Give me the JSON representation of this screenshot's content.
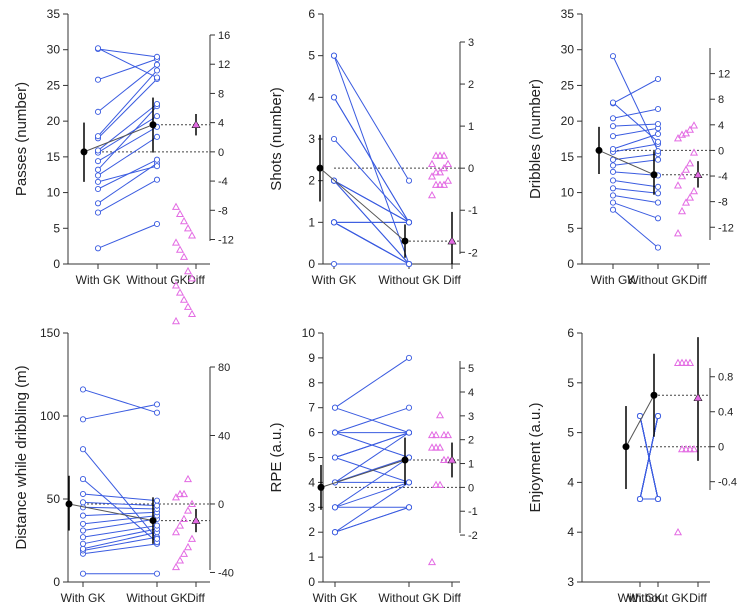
{
  "style": {
    "pair_color": "#3a5be0",
    "diff_color": "#e36be3",
    "mean_color": "#000000",
    "axis_color": "#333333"
  },
  "chart_data": [
    {
      "type": "scatter",
      "ylabel": "Passes (number)",
      "categories": [
        "With GK",
        "Without GK",
        "Diff"
      ],
      "ylim": [
        0,
        35
      ],
      "yticks": [
        "0",
        "5",
        "10",
        "15",
        "20",
        "25",
        "30",
        "35"
      ],
      "diff_axis": {
        "ylim": [
          -16,
          16
        ],
        "zero": 15.7,
        "ticks": [
          "-12",
          "-8",
          "-4",
          "0",
          "4",
          "8",
          "12",
          "16"
        ]
      },
      "pairs": [
        [
          2.2,
          5.6
        ],
        [
          7.2,
          11.8
        ],
        [
          8.5,
          14.1
        ],
        [
          10.5,
          14.6
        ],
        [
          11.5,
          13.7
        ],
        [
          12.4,
          17.8
        ],
        [
          13.2,
          22.1
        ],
        [
          14.4,
          19.2
        ],
        [
          15.6,
          20.7
        ],
        [
          15.9,
          22.4
        ],
        [
          17.6,
          25.9
        ],
        [
          17.9,
          27.1
        ],
        [
          21.3,
          27.9
        ],
        [
          25.8,
          28.7
        ],
        [
          30.1,
          29.0
        ],
        [
          30.2,
          26.1
        ]
      ],
      "means": [
        {
          "mean": 15.7,
          "lo": 11.5,
          "hi": 19.8
        },
        {
          "mean": 19.5,
          "lo": 15.6,
          "hi": 23.3
        }
      ],
      "diff_points": [
        [
          0,
          8
        ],
        [
          1,
          7
        ],
        [
          2,
          6
        ],
        [
          3,
          5
        ],
        [
          4,
          4
        ],
        [
          5,
          3
        ],
        [
          6,
          2
        ],
        [
          7,
          1
        ],
        [
          8,
          -1
        ],
        [
          9,
          -2
        ],
        [
          10,
          -3
        ],
        [
          11,
          -4
        ],
        [
          12,
          -5
        ],
        [
          13,
          -6
        ],
        [
          14,
          -7
        ],
        [
          15,
          -8
        ]
      ],
      "diff_mean": {
        "mean": 19.5,
        "lo": 18.0,
        "hi": 21.0
      }
    },
    {
      "type": "scatter",
      "ylabel": "Shots (number)",
      "categories": [
        "With GK",
        "Without GK",
        "Diff"
      ],
      "ylim": [
        0,
        6
      ],
      "yticks": [
        "0",
        "1",
        "2",
        "3",
        "4",
        "5",
        "6"
      ],
      "diff_axis": {
        "ylim": [
          -2.2,
          3
        ],
        "zero": 2.3,
        "ticks": [
          "-2",
          "-1",
          "0",
          "1",
          "2",
          "3"
        ]
      },
      "pairs": [
        [
          0,
          0
        ],
        [
          1,
          0
        ],
        [
          1,
          0
        ],
        [
          1,
          0
        ],
        [
          1,
          0
        ],
        [
          1,
          1
        ],
        [
          2,
          0
        ],
        [
          2,
          0
        ],
        [
          2,
          1
        ],
        [
          2,
          1
        ],
        [
          3,
          1
        ],
        [
          4,
          1
        ],
        [
          4,
          1
        ],
        [
          5,
          2
        ],
        [
          5,
          0
        ],
        [
          1,
          1
        ],
        [
          2,
          1
        ]
      ],
      "means": [
        {
          "mean": 2.3,
          "lo": 1.5,
          "hi": 3.1
        },
        {
          "mean": 0.55,
          "lo": 0.15,
          "hi": 0.95
        }
      ],
      "diff_points": [
        [
          0,
          1.65
        ],
        [
          1,
          1.9
        ],
        [
          2,
          1.9
        ],
        [
          3,
          1.9
        ],
        [
          4,
          2.0
        ],
        [
          5,
          2.1
        ],
        [
          6,
          2.2
        ],
        [
          7,
          2.2
        ],
        [
          8,
          2.3
        ],
        [
          9,
          2.4
        ],
        [
          10,
          2.4
        ],
        [
          11,
          2.6
        ],
        [
          12,
          2.6
        ],
        [
          13,
          2.6
        ]
      ],
      "diff_mean": {
        "mean": 0.55,
        "lo": 0.0,
        "hi": 1.25
      }
    },
    {
      "type": "scatter",
      "ylabel": "Dribbles (number)",
      "categories": [
        "With GK",
        "Without GK",
        "Diff"
      ],
      "ylim": [
        0,
        35
      ],
      "yticks": [
        "0",
        "5",
        "10",
        "15",
        "20",
        "25",
        "30",
        "35"
      ],
      "diff_axis": {
        "ylim": [
          -16,
          16
        ],
        "zero": 15.9,
        "ticks": [
          "-12",
          "-8",
          "-4",
          "0",
          "4",
          "8",
          "12"
        ]
      },
      "pairs": [
        [
          7.6,
          2.3
        ],
        [
          8.6,
          6.4
        ],
        [
          9.6,
          8.6
        ],
        [
          10.6,
          9.9
        ],
        [
          11.7,
          10.8
        ],
        [
          12.9,
          12.4
        ],
        [
          13.8,
          14.6
        ],
        [
          14.6,
          15.4
        ],
        [
          15.7,
          16.8
        ],
        [
          16.1,
          18.2
        ],
        [
          17.9,
          19.0
        ],
        [
          19.3,
          19.6
        ],
        [
          20.4,
          21.7
        ],
        [
          22.5,
          25.9
        ],
        [
          22.6,
          17.1
        ],
        [
          29.1,
          15.8
        ]
      ],
      "means": [
        {
          "mean": 15.9,
          "lo": 12.6,
          "hi": 19.2
        },
        {
          "mean": 12.5,
          "lo": 9.7,
          "hi": 15.8
        }
      ],
      "diff_points": [
        [
          0,
          4.3
        ],
        [
          1,
          7.4
        ],
        [
          2,
          8.6
        ],
        [
          3,
          9.3
        ],
        [
          4,
          10.2
        ],
        [
          5,
          11.0
        ],
        [
          6,
          12.3
        ],
        [
          7,
          13.2
        ],
        [
          8,
          14.1
        ],
        [
          9,
          15.6
        ],
        [
          10,
          17.6
        ],
        [
          11,
          18.1
        ],
        [
          12,
          18.3
        ],
        [
          13,
          18.8
        ],
        [
          14,
          19.4
        ]
      ],
      "diff_mean": {
        "mean": 12.5,
        "lo": 10.7,
        "hi": 14.4
      }
    },
    {
      "type": "scatter",
      "ylabel": "Distance while dribbling (m)",
      "categories": [
        "With GK",
        "Without GK",
        "Diff"
      ],
      "ylim": [
        0,
        150
      ],
      "yticks": [
        "0",
        "50",
        "100",
        "150"
      ],
      "diff_axis": {
        "ylim": [
          -45,
          80
        ],
        "zero": 47,
        "ticks": [
          "-40",
          "0",
          "40",
          "80"
        ]
      },
      "pairs": [
        [
          5,
          5
        ],
        [
          17,
          23
        ],
        [
          19,
          27
        ],
        [
          20,
          30
        ],
        [
          23,
          32
        ],
        [
          27,
          34
        ],
        [
          31,
          38
        ],
        [
          35,
          40
        ],
        [
          40,
          42
        ],
        [
          45,
          44
        ],
        [
          48,
          46
        ],
        [
          53,
          49
        ],
        [
          62,
          24
        ],
        [
          80,
          26
        ],
        [
          98,
          107
        ],
        [
          116,
          102
        ]
      ],
      "means": [
        {
          "mean": 47,
          "lo": 31,
          "hi": 64
        },
        {
          "mean": 37,
          "lo": 23,
          "hi": 51
        }
      ],
      "diff_points": [
        [
          0,
          9
        ],
        [
          1,
          13
        ],
        [
          2,
          17
        ],
        [
          3,
          21
        ],
        [
          4,
          26
        ],
        [
          5,
          30
        ],
        [
          6,
          34
        ],
        [
          7,
          38
        ],
        [
          8,
          43
        ],
        [
          9,
          47
        ],
        [
          10,
          51
        ],
        [
          11,
          53
        ],
        [
          12,
          53
        ],
        [
          13,
          62
        ]
      ],
      "diff_mean": {
        "mean": 37,
        "lo": 30,
        "hi": 44
      }
    },
    {
      "type": "scatter",
      "ylabel": "RPE (a.u.)",
      "categories": [
        "With GK",
        "Without GK",
        "Diff"
      ],
      "ylim": [
        0,
        10
      ],
      "yticks": [
        "0",
        "1",
        "2",
        "3",
        "4",
        "5",
        "6",
        "7",
        "8",
        "9",
        "10"
      ],
      "diff_axis": {
        "ylim": [
          -2.2,
          5.3
        ],
        "zero": 3.8,
        "ticks": [
          "-2",
          "-1",
          "0",
          "1",
          "2",
          "3",
          "4",
          "5"
        ]
      },
      "pairs": [
        [
          2,
          3
        ],
        [
          2,
          3
        ],
        [
          2,
          4
        ],
        [
          3,
          3
        ],
        [
          3,
          4
        ],
        [
          3,
          5
        ],
        [
          4,
          4
        ],
        [
          4,
          5
        ],
        [
          4,
          6
        ],
        [
          5,
          4
        ],
        [
          5,
          6
        ],
        [
          5,
          6
        ],
        [
          6,
          5
        ],
        [
          6,
          6
        ],
        [
          6,
          7
        ],
        [
          7,
          6
        ],
        [
          7,
          9
        ]
      ],
      "means": [
        {
          "mean": 3.8,
          "lo": 2.9,
          "hi": 4.7
        },
        {
          "mean": 4.9,
          "lo": 3.9,
          "hi": 5.8
        }
      ],
      "diff_points": [
        [
          0,
          0.8
        ],
        [
          1,
          3.9
        ],
        [
          2,
          3.9
        ],
        [
          3,
          4.9
        ],
        [
          4,
          4.9
        ],
        [
          5,
          5.4
        ],
        [
          6,
          5.4
        ],
        [
          7,
          5.4
        ],
        [
          8,
          5.9
        ],
        [
          9,
          5.9
        ],
        [
          10,
          5.9
        ],
        [
          11,
          5.9
        ],
        [
          12,
          6.7
        ]
      ],
      "diff_mean": {
        "mean": 4.9,
        "lo": 4.2,
        "hi": 5.6
      }
    },
    {
      "type": "scatter",
      "ylabel": "Enjoyment (a.u.)",
      "categories": [
        "With GK",
        "Without GK",
        "Diff"
      ],
      "ylim": [
        3,
        6
      ],
      "yticks": [
        "3",
        "4",
        "4",
        "5",
        "5",
        "6"
      ],
      "diff_axis": {
        "ylim": [
          -0.45,
          0.9
        ],
        "zero": 4.63,
        "ticks": [
          "-0.4",
          "0",
          "0.4",
          "0.8"
        ]
      },
      "pairs": [
        [
          4,
          5
        ],
        [
          4,
          5
        ],
        [
          4,
          5
        ],
        [
          4,
          5
        ],
        [
          4,
          5
        ],
        [
          4,
          5
        ],
        [
          4,
          5
        ],
        [
          4,
          5
        ],
        [
          4,
          5
        ],
        [
          4,
          4
        ],
        [
          5,
          4
        ],
        [
          5,
          4
        ],
        [
          5,
          4
        ],
        [
          5,
          4
        ],
        [
          5,
          4
        ],
        [
          5,
          4
        ],
        [
          5,
          4
        ],
        [
          5,
          4
        ]
      ],
      "means": [
        {
          "mean": 4.63,
          "lo": 4.12,
          "hi": 5.12
        },
        {
          "mean": 5.25,
          "lo": 4.75,
          "hi": 5.75
        }
      ],
      "diff_points": [
        [
          0,
          3.6
        ],
        [
          1,
          4.6
        ],
        [
          2,
          4.6
        ],
        [
          3,
          4.6
        ],
        [
          4,
          4.6
        ],
        [
          5,
          5.64
        ],
        [
          6,
          5.64
        ],
        [
          7,
          5.64
        ],
        [
          8,
          5.64
        ]
      ],
      "diff_mean": {
        "mean": 5.22,
        "lo": 4.46,
        "hi": 5.95
      }
    }
  ]
}
